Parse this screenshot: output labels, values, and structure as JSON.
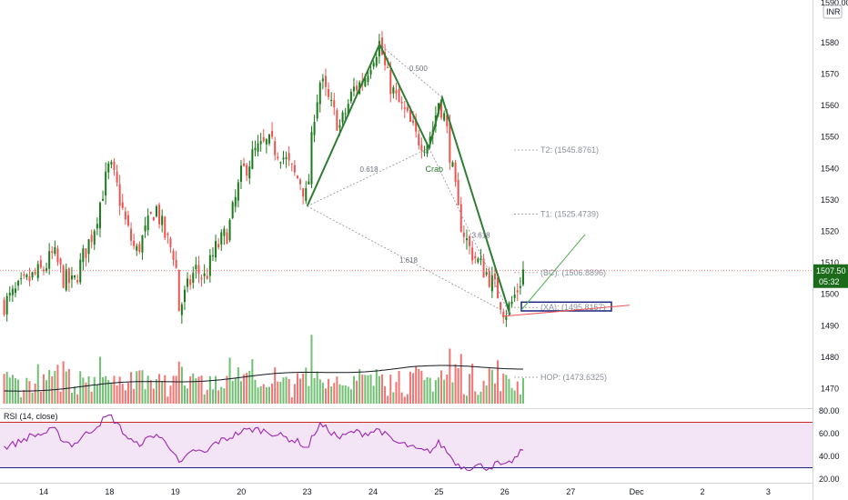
{
  "chart_data": {
    "type": "candlestick",
    "currency_badge": "INR",
    "price_axis": {
      "min": 1463,
      "max": 1590,
      "ticks": [
        1580,
        1570,
        1560,
        1550,
        1540,
        1530,
        1520,
        1510,
        1500,
        1490,
        1480,
        1470
      ],
      "top_partial_label": "1590.00"
    },
    "date_axis": {
      "ticks": [
        {
          "label": "14",
          "pos": 0.0
        },
        {
          "label": "18",
          "pos": 1.0
        },
        {
          "label": "19",
          "pos": 2.0
        },
        {
          "label": "20",
          "pos": 3.0
        },
        {
          "label": "23",
          "pos": 4.0
        },
        {
          "label": "24",
          "pos": 5.0
        },
        {
          "label": "25",
          "pos": 6.0
        },
        {
          "label": "26",
          "pos": 7.0
        },
        {
          "label": "27",
          "pos": 8.0
        },
        {
          "label": "Dec",
          "pos": 9.0
        },
        {
          "label": "2",
          "pos": 10.0
        },
        {
          "label": "3",
          "pos": 11.0
        }
      ]
    },
    "last_price": {
      "value": 1507.5,
      "label": "1507.50",
      "countdown": "05:32"
    },
    "colors": {
      "up": "#26a69a",
      "up_dark": "#1b7a1b",
      "down": "#ef5350",
      "pattern": "#2e7d32",
      "rsi_line": "#9c27b0",
      "rsi_band": "#f3e5f5",
      "box": "#1a237e"
    },
    "price_path": [
      [
        -0.6,
        1497
      ],
      [
        -0.4,
        1501
      ],
      [
        -0.2,
        1505
      ],
      [
        0.0,
        1508
      ],
      [
        0.15,
        1513
      ],
      [
        0.3,
        1505
      ],
      [
        0.45,
        1503
      ],
      [
        0.6,
        1512
      ],
      [
        0.75,
        1520
      ],
      [
        0.9,
        1533
      ],
      [
        1.0,
        1541
      ],
      [
        1.1,
        1535
      ],
      [
        1.25,
        1522
      ],
      [
        1.4,
        1513
      ],
      [
        1.55,
        1520
      ],
      [
        1.7,
        1528
      ],
      [
        1.85,
        1518
      ],
      [
        2.0,
        1512
      ],
      [
        2.05,
        1495
      ],
      [
        2.15,
        1500
      ],
      [
        2.3,
        1508
      ],
      [
        2.45,
        1505
      ],
      [
        2.6,
        1514
      ],
      [
        2.8,
        1520
      ],
      [
        3.0,
        1538
      ],
      [
        3.2,
        1545
      ],
      [
        3.4,
        1548
      ],
      [
        3.6,
        1545
      ],
      [
        3.8,
        1538
      ],
      [
        3.9,
        1536
      ],
      [
        4.0,
        1530
      ],
      [
        4.1,
        1557
      ],
      [
        4.2,
        1568
      ],
      [
        4.35,
        1560
      ],
      [
        4.5,
        1553
      ],
      [
        4.7,
        1565
      ],
      [
        4.85,
        1568
      ],
      [
        5.0,
        1576
      ],
      [
        5.1,
        1580
      ],
      [
        5.2,
        1570
      ],
      [
        5.35,
        1562
      ],
      [
        5.5,
        1557
      ],
      [
        5.65,
        1550
      ],
      [
        5.8,
        1548
      ],
      [
        5.9,
        1552
      ],
      [
        6.0,
        1562
      ],
      [
        6.1,
        1555
      ],
      [
        6.2,
        1540
      ],
      [
        6.3,
        1525
      ],
      [
        6.45,
        1515
      ],
      [
        6.6,
        1510
      ],
      [
        6.75,
        1506
      ],
      [
        6.9,
        1500
      ],
      [
        7.0,
        1494
      ],
      [
        7.1,
        1497
      ],
      [
        7.2,
        1502
      ],
      [
        7.28,
        1507.5
      ]
    ],
    "volume": {
      "ma_label": "",
      "scale_note": "relative"
    },
    "harmonic": {
      "name": "Crab",
      "points": {
        "X": [
          4.0,
          1528
        ],
        "A": [
          5.1,
          1579.5
        ],
        "B": [
          5.85,
          1546.5
        ],
        "C": [
          6.05,
          1562.5
        ],
        "D": [
          7.08,
          1493.5
        ]
      },
      "ratios": [
        {
          "text": "0.500",
          "at": [
            5.55,
            1571
          ]
        },
        {
          "text": "0.618",
          "at": [
            4.8,
            1539
          ]
        },
        {
          "text": "3.618",
          "at": [
            6.5,
            1518
          ]
        },
        {
          "text": "1.618",
          "at": [
            5.4,
            1510
          ]
        }
      ],
      "targets": [
        {
          "label": "T2: (1545.8761)",
          "value": 1545.8761
        },
        {
          "label": "T1: (1525.4739)",
          "value": 1525.4739
        },
        {
          "label": "(BC): (1506.8896)",
          "value": 1506.8896
        },
        {
          "label": "(XA): (1495.8157)",
          "value": 1495.8157
        },
        {
          "label": "HOP: (1473.6325)",
          "value": 1473.6325
        }
      ]
    },
    "rsi": {
      "label": "RSI (14, close)",
      "ticks": [
        80.0,
        60.0,
        40.0,
        20.0
      ],
      "upper": 70,
      "lower": 30,
      "values": [
        [
          -0.6,
          48
        ],
        [
          -0.4,
          52
        ],
        [
          -0.2,
          58
        ],
        [
          0.0,
          60
        ],
        [
          0.15,
          64
        ],
        [
          0.3,
          54
        ],
        [
          0.45,
          50
        ],
        [
          0.6,
          58
        ],
        [
          0.75,
          64
        ],
        [
          0.9,
          72
        ],
        [
          1.0,
          76
        ],
        [
          1.1,
          70
        ],
        [
          1.25,
          58
        ],
        [
          1.4,
          50
        ],
        [
          1.55,
          54
        ],
        [
          1.7,
          60
        ],
        [
          1.85,
          52
        ],
        [
          2.0,
          44
        ],
        [
          2.05,
          32
        ],
        [
          2.15,
          38
        ],
        [
          2.3,
          46
        ],
        [
          2.45,
          42
        ],
        [
          2.6,
          52
        ],
        [
          2.8,
          56
        ],
        [
          3.0,
          62
        ],
        [
          3.2,
          64
        ],
        [
          3.4,
          62
        ],
        [
          3.6,
          58
        ],
        [
          3.8,
          54
        ],
        [
          3.9,
          52
        ],
        [
          4.0,
          46
        ],
        [
          4.1,
          60
        ],
        [
          4.2,
          68
        ],
        [
          4.35,
          62
        ],
        [
          4.5,
          56
        ],
        [
          4.7,
          62
        ],
        [
          4.85,
          60
        ],
        [
          5.0,
          62
        ],
        [
          5.1,
          64
        ],
        [
          5.2,
          58
        ],
        [
          5.35,
          52
        ],
        [
          5.5,
          50
        ],
        [
          5.65,
          46
        ],
        [
          5.8,
          44
        ],
        [
          5.9,
          46
        ],
        [
          6.0,
          52
        ],
        [
          6.1,
          46
        ],
        [
          6.2,
          38
        ],
        [
          6.3,
          32
        ],
        [
          6.45,
          30
        ],
        [
          6.6,
          32
        ],
        [
          6.75,
          30
        ],
        [
          6.9,
          34
        ],
        [
          7.0,
          30
        ],
        [
          7.1,
          36
        ],
        [
          7.2,
          40
        ],
        [
          7.28,
          47
        ]
      ]
    }
  }
}
